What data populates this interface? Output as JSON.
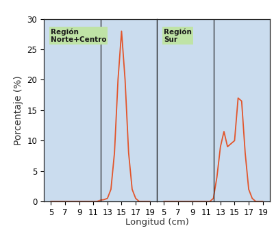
{
  "chart_data": [
    {
      "type": "line",
      "annotation": "Región\nNorte+Centro",
      "ylabel": "Porcentaje (%)",
      "xlabel": "Longitud (cm)",
      "x": [
        5,
        5.5,
        6,
        6.5,
        7,
        7.5,
        8,
        8.5,
        9,
        9.5,
        10,
        10.5,
        11,
        11.5,
        12,
        12.5,
        13,
        13.5,
        14,
        14.5,
        15,
        15.5,
        16,
        16.5,
        17,
        17.5,
        18,
        18.5,
        19
      ],
      "values": [
        0,
        0,
        0,
        0,
        0,
        0,
        0,
        0,
        0,
        0,
        0,
        0,
        0,
        0,
        0.2,
        0.3,
        0.5,
        2,
        8,
        20,
        28,
        20,
        8,
        2,
        0.5,
        0,
        0,
        0,
        0
      ],
      "color": "#e2552b",
      "reference_x": 12,
      "xlim": [
        4,
        20
      ],
      "xticks": [
        5,
        7,
        9,
        11,
        13,
        15,
        17,
        19
      ],
      "ylim": [
        0,
        30
      ],
      "yticks": [
        0,
        5,
        10,
        15,
        20,
        25,
        30
      ],
      "grid": false
    },
    {
      "type": "line",
      "annotation": "Región\nSur",
      "x": [
        5,
        5.5,
        6,
        6.5,
        7,
        7.5,
        8,
        8.5,
        9,
        9.5,
        10,
        10.5,
        11,
        11.5,
        12,
        12.5,
        13,
        13.5,
        14,
        14.5,
        15,
        15.5,
        16,
        16.5,
        17,
        17.5,
        18,
        18.5,
        19
      ],
      "values": [
        0,
        0,
        0,
        0,
        0,
        0,
        0,
        0,
        0,
        0,
        0,
        0,
        0,
        0,
        0.5,
        4,
        9,
        11.5,
        9,
        9.5,
        10,
        17,
        16.5,
        8,
        2,
        0.5,
        0,
        0,
        0
      ],
      "color": "#e2552b",
      "reference_x": 12,
      "xlim": [
        4,
        20
      ],
      "xticks": [
        5,
        7,
        9,
        11,
        13,
        15,
        17,
        19
      ],
      "ylim": [
        0,
        30
      ],
      "yticks": [
        0,
        5,
        10,
        15,
        20,
        25,
        30
      ],
      "tick_labels": "x",
      "grid": false
    }
  ]
}
